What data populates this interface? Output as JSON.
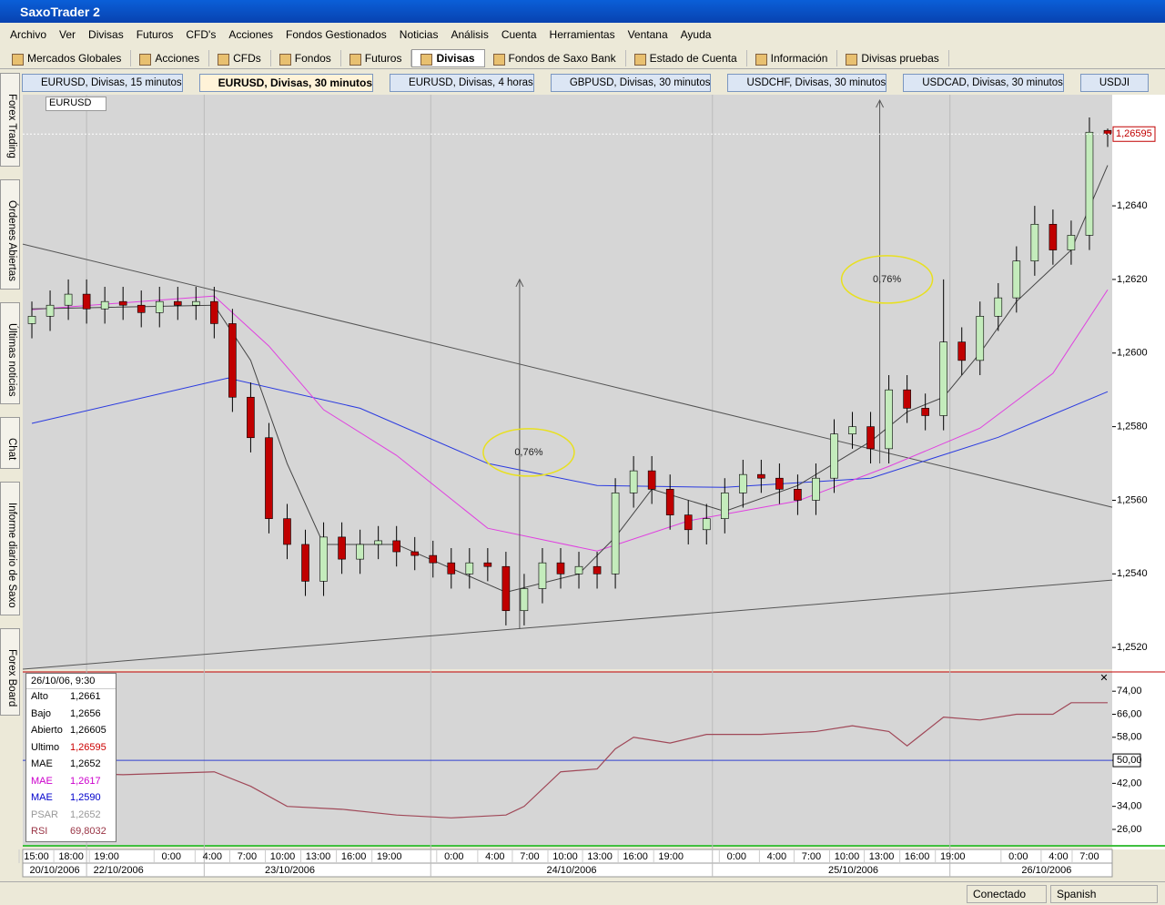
{
  "window": {
    "title": "SaxoTrader 2"
  },
  "menu": [
    "Archivo",
    "Ver",
    "Divisas",
    "Futuros",
    "CFD's",
    "Acciones",
    "Fondos Gestionados",
    "Noticias",
    "Análisis",
    "Cuenta",
    "Herramientas",
    "Ventana",
    "Ayuda"
  ],
  "toolbar": [
    {
      "label": "Mercados Globales"
    },
    {
      "label": "Acciones"
    },
    {
      "label": "CFDs"
    },
    {
      "label": "Fondos"
    },
    {
      "label": "Futuros"
    },
    {
      "label": "Divisas",
      "active": true
    },
    {
      "label": "Fondos de Saxo Bank"
    },
    {
      "label": "Estado de Cuenta"
    },
    {
      "label": "Información"
    },
    {
      "label": "Divisas pruebas"
    }
  ],
  "chart_tabs": [
    {
      "label": "EURUSD, Divisas, 15 minutos"
    },
    {
      "label": "EURUSD, Divisas, 30 minutos",
      "active": true
    },
    {
      "label": "EURUSD, Divisas, 4 horas"
    },
    {
      "label": "GBPUSD, Divisas, 30 minutos"
    },
    {
      "label": "USDCHF, Divisas, 30 minutos"
    },
    {
      "label": "USDCAD, Divisas, 30 minutos"
    },
    {
      "label": "USDJI"
    }
  ],
  "side_tabs": [
    "Forex Trading",
    "Órdenes Abiertas",
    "Últimas noticias",
    "Chat",
    "Informe diario de Saxo",
    "Forex Board"
  ],
  "symbol": "EURUSD",
  "info_panel": {
    "header": "26/10/06, 9:30",
    "rows": [
      {
        "label": "Alto",
        "value": "1,2661",
        "color": "#000000"
      },
      {
        "label": "Bajo",
        "value": "1,2656",
        "color": "#000000"
      },
      {
        "label": "Abierto",
        "value": "1,26605",
        "color": "#000000"
      },
      {
        "label": "Ultimo",
        "value": "1,26595",
        "color": "#cc0000",
        "label_color": "#000000"
      },
      {
        "label": "MAE",
        "value": "1,2652",
        "color": "#000000"
      },
      {
        "label": "MAE",
        "value": "1,2617",
        "color": "#cc00cc"
      },
      {
        "label": "MAE",
        "value": "1,2590",
        "color": "#0000cc"
      },
      {
        "label": "PSAR",
        "value": "1,2652",
        "color": "#999999"
      },
      {
        "label": "RSI",
        "value": "69,8032",
        "color": "#993344"
      }
    ]
  },
  "status": [
    "Conectado",
    "Spanish"
  ],
  "chart_data": [
    {
      "type": "candlestick",
      "xlim": [
        -0.5,
        59.25
      ],
      "ylim": [
        1.25141,
        1.26702
      ],
      "yticks": [
        {
          "value": 1.252,
          "label": "1,2520"
        },
        {
          "value": 1.254,
          "label": "1,2540"
        },
        {
          "value": 1.256,
          "label": "1,2560"
        },
        {
          "value": 1.258,
          "label": "1,2580"
        },
        {
          "value": 1.26,
          "label": "1,2600"
        },
        {
          "value": 1.262,
          "label": "1,2620"
        },
        {
          "value": 1.264,
          "label": "1,2640"
        }
      ],
      "up_color": "#c4ecbc",
      "down_color": "#c00000",
      "open": [
        1.2608,
        1.261,
        1.2613,
        1.2616,
        1.2612,
        1.2614,
        1.2613,
        1.2611,
        1.2614,
        1.2613,
        1.2614,
        1.2608,
        1.2588,
        1.2577,
        1.2555,
        1.2548,
        1.2538,
        1.255,
        1.2544,
        1.2548,
        1.2549,
        1.2546,
        1.2545,
        1.2543,
        1.254,
        1.2543,
        1.2542,
        1.253,
        1.2536,
        1.2543,
        1.254,
        1.2542,
        1.254,
        1.2562,
        1.2568,
        1.2563,
        1.2556,
        1.2552,
        1.2555,
        1.2562,
        1.2567,
        1.2566,
        1.2563,
        1.256,
        1.2566,
        1.2578,
        1.258,
        1.2574,
        1.259,
        1.2585,
        1.2583,
        1.2603,
        1.2598,
        1.261,
        1.2615,
        1.2625,
        1.2635,
        1.2628,
        1.2632,
        1.26605
      ],
      "high": [
        1.2614,
        1.2617,
        1.262,
        1.262,
        1.2618,
        1.2618,
        1.2617,
        1.2618,
        1.2618,
        1.2618,
        1.2618,
        1.2612,
        1.2592,
        1.2581,
        1.2559,
        1.2552,
        1.2554,
        1.2554,
        1.2552,
        1.2553,
        1.2553,
        1.255,
        1.2549,
        1.2547,
        1.2547,
        1.2547,
        1.2546,
        1.254,
        1.2547,
        1.2547,
        1.2546,
        1.2546,
        1.2566,
        1.2572,
        1.2572,
        1.2567,
        1.256,
        1.2559,
        1.2566,
        1.2571,
        1.2571,
        1.257,
        1.2567,
        1.257,
        1.2582,
        1.2584,
        1.2584,
        1.2594,
        1.2594,
        1.2589,
        1.262,
        1.2607,
        1.2614,
        1.2619,
        1.2629,
        1.264,
        1.2639,
        1.2636,
        1.2664,
        1.2661
      ],
      "low": [
        1.2604,
        1.2606,
        1.2609,
        1.2608,
        1.2608,
        1.2609,
        1.2607,
        1.2607,
        1.2609,
        1.2609,
        1.2604,
        1.2584,
        1.2573,
        1.2551,
        1.2544,
        1.2534,
        1.2534,
        1.254,
        1.254,
        1.2544,
        1.2542,
        1.2541,
        1.2539,
        1.2536,
        1.2536,
        1.2538,
        1.2526,
        1.2526,
        1.2532,
        1.2536,
        1.2536,
        1.2536,
        1.2536,
        1.2558,
        1.2559,
        1.2552,
        1.2548,
        1.2548,
        1.2551,
        1.2558,
        1.2562,
        1.2559,
        1.2556,
        1.2556,
        1.2562,
        1.2574,
        1.257,
        1.257,
        1.2581,
        1.2579,
        1.2579,
        1.2594,
        1.2594,
        1.2606,
        1.2611,
        1.2621,
        1.2624,
        1.2624,
        1.2628,
        1.2656
      ],
      "close": [
        1.261,
        1.2613,
        1.2616,
        1.2612,
        1.2614,
        1.2613,
        1.2611,
        1.2614,
        1.2613,
        1.2614,
        1.2608,
        1.2588,
        1.2577,
        1.2555,
        1.2548,
        1.2538,
        1.255,
        1.2544,
        1.2548,
        1.2549,
        1.2546,
        1.2545,
        1.2543,
        1.254,
        1.2543,
        1.2542,
        1.253,
        1.2536,
        1.2543,
        1.254,
        1.2542,
        1.254,
        1.2562,
        1.2568,
        1.2563,
        1.2556,
        1.2552,
        1.2555,
        1.2562,
        1.2567,
        1.2566,
        1.2563,
        1.256,
        1.2566,
        1.2578,
        1.258,
        1.2574,
        1.259,
        1.2585,
        1.2583,
        1.2603,
        1.2598,
        1.261,
        1.2615,
        1.2625,
        1.2635,
        1.2628,
        1.2632,
        1.266,
        1.26595
      ],
      "last_price": {
        "value": 1.26595,
        "label": "1,26595"
      },
      "overlays": [
        {
          "color": "#2a3ae0",
          "x": [
            0,
            10.75,
            18,
            25,
            31,
            38,
            46,
            53,
            59
          ],
          "values": [
            1.25809,
            1.25932,
            1.2585,
            1.257,
            1.2564,
            1.25635,
            1.2566,
            1.25771,
            1.25895
          ]
        },
        {
          "color": "#e040e0",
          "x": [
            0,
            10,
            13,
            16,
            20,
            25,
            31,
            36,
            42,
            47,
            52,
            56,
            59
          ],
          "values": [
            1.26118,
            1.26155,
            1.26019,
            1.25846,
            1.25722,
            1.25524,
            1.25462,
            1.25544,
            1.25598,
            1.25692,
            1.25796,
            1.25945,
            1.26172
          ]
        },
        {
          "color": "#444444",
          "x": [
            0,
            10,
            12,
            14,
            16,
            20,
            26,
            30,
            32,
            34,
            38,
            42,
            46,
            48,
            50,
            52,
            54,
            57,
            59
          ],
          "values": [
            1.2612,
            1.2613,
            1.2598,
            1.257,
            1.2548,
            1.2548,
            1.2535,
            1.254,
            1.255,
            1.2563,
            1.2557,
            1.2564,
            1.2576,
            1.2584,
            1.2588,
            1.26,
            1.2614,
            1.2628,
            1.2651
          ]
        }
      ],
      "trendlines": [
        {
          "x": [
            -0.5,
            59.25
          ],
          "values": [
            1.26296,
            1.25581
          ]
        },
        {
          "x": [
            -0.5,
            59.25
          ],
          "values": [
            1.25141,
            1.25383
          ]
        }
      ],
      "annotations": [
        {
          "label": "0,76%",
          "x": 26.75,
          "from": 1.2525,
          "to": 1.262,
          "label_x": 27.25,
          "label_y": 1.2573
        },
        {
          "label": "0,76%",
          "x": 46.5,
          "from": 1.257,
          "to": 1.26687,
          "label_x": 46.9,
          "label_y": 1.262
        }
      ],
      "time_labels": [
        {
          "x": 0.25,
          "label": "15:00"
        },
        {
          "x": 2.15,
          "label": "18:00"
        },
        {
          "x": 4.1,
          "label": "19:00"
        },
        {
          "x": 7.65,
          "label": "0:00"
        },
        {
          "x": 9.9,
          "label": "4:00"
        },
        {
          "x": 11.8,
          "label": "7:00"
        },
        {
          "x": 13.75,
          "label": "10:00"
        },
        {
          "x": 15.7,
          "label": "13:00"
        },
        {
          "x": 17.65,
          "label": "16:00"
        },
        {
          "x": 19.6,
          "label": "19:00"
        },
        {
          "x": 23.15,
          "label": "0:00"
        },
        {
          "x": 25.4,
          "label": "4:00"
        },
        {
          "x": 27.3,
          "label": "7:00"
        },
        {
          "x": 29.25,
          "label": "10:00"
        },
        {
          "x": 31.15,
          "label": "13:00"
        },
        {
          "x": 33.1,
          "label": "16:00"
        },
        {
          "x": 35.05,
          "label": "19:00"
        },
        {
          "x": 38.65,
          "label": "0:00"
        },
        {
          "x": 40.85,
          "label": "4:00"
        },
        {
          "x": 42.75,
          "label": "7:00"
        },
        {
          "x": 44.7,
          "label": "10:00"
        },
        {
          "x": 46.6,
          "label": "13:00"
        },
        {
          "x": 48.55,
          "label": "16:00"
        },
        {
          "x": 50.5,
          "label": "19:00"
        },
        {
          "x": 54.1,
          "label": "0:00"
        },
        {
          "x": 56.3,
          "label": "4:00"
        },
        {
          "x": 58,
          "label": "7:00"
        }
      ],
      "date_labels": [
        {
          "x": 1.25,
          "label": "20/10/2006"
        },
        {
          "x": 4.75,
          "label": "22/10/2006"
        },
        {
          "x": 14.15,
          "label": "23/10/2006"
        },
        {
          "x": 29.6,
          "label": "24/10/2006"
        },
        {
          "x": 45.05,
          "label": "25/10/2006"
        },
        {
          "x": 55.65,
          "label": "26/10/2006"
        }
      ]
    },
    {
      "type": "line",
      "xlim": [
        -0.5,
        59.25
      ],
      "ylim": [
        20.3,
        80.7
      ],
      "yticks": [
        {
          "value": 26,
          "label": "26,00"
        },
        {
          "value": 34,
          "label": "34,00"
        },
        {
          "value": 42,
          "label": "42,00"
        },
        {
          "value": 50,
          "label": "50,00",
          "line_color": "#3040d0"
        },
        {
          "value": 58,
          "label": "58,00"
        },
        {
          "value": 66,
          "label": "66,00"
        },
        {
          "value": 74,
          "label": "74,00"
        }
      ],
      "color": "#a04858",
      "x": [
        0,
        5,
        10,
        12,
        14,
        17,
        20,
        23,
        26,
        27,
        29,
        31,
        32,
        33,
        35,
        37,
        40,
        43,
        45,
        47,
        48,
        50,
        52,
        54,
        56,
        57,
        59
      ],
      "values": [
        46,
        45,
        46,
        41,
        34,
        33,
        31,
        30,
        31,
        34,
        46,
        47,
        54,
        58,
        56,
        59,
        59,
        60,
        62,
        60,
        55,
        65,
        64,
        66,
        66,
        70,
        70
      ]
    }
  ]
}
